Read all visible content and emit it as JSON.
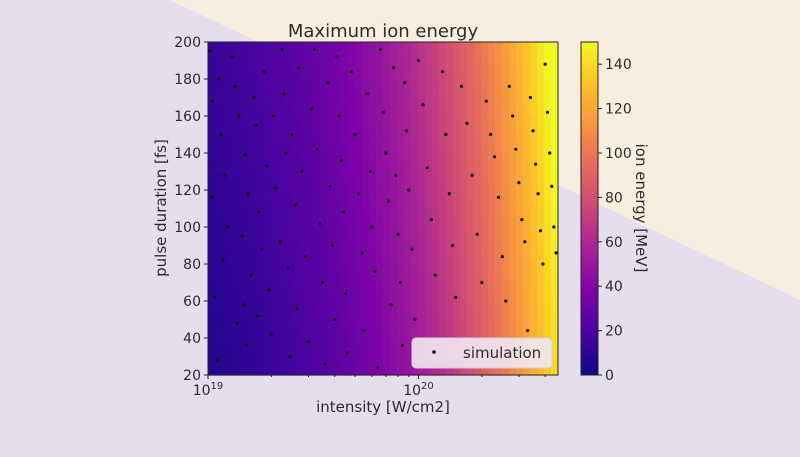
{
  "chart_data": {
    "type": "heatmap",
    "title": "Maximum ion energy",
    "xlabel": "intensity [W/cm2]",
    "ylabel": "pulse duration [fs]",
    "x_scale": "log",
    "xlim": [
      1e+19,
      4.6e+20
    ],
    "ylim": [
      20,
      200
    ],
    "x_ticks": [
      {
        "base": "10",
        "exp": "19"
      },
      {
        "base": "10",
        "exp": "20"
      }
    ],
    "y_ticks": [
      "20",
      "40",
      "60",
      "80",
      "100",
      "120",
      "140",
      "160",
      "180",
      "200"
    ],
    "colorbar": {
      "label": "ion energy [MeV]",
      "range": [
        0,
        150
      ],
      "ticks": [
        "0",
        "20",
        "40",
        "60",
        "80",
        "100",
        "120",
        "140"
      ],
      "colormap": "plasma"
    },
    "legend": {
      "label": "simulation",
      "placement": "lower right"
    },
    "grid": false,
    "series": [
      {
        "name": "simulation",
        "type": "scatter",
        "points": [
          [
            1.02e+19,
            195
          ],
          [
            1.05e+19,
            168
          ],
          [
            1.04e+19,
            116
          ],
          [
            1.08e+19,
            62
          ],
          [
            1.1e+19,
            28
          ],
          [
            1.12e+19,
            180
          ],
          [
            1.15e+19,
            150
          ],
          [
            1.2e+19,
            128
          ],
          [
            1.24e+19,
            100
          ],
          [
            1.18e+19,
            82
          ],
          [
            1.3e+19,
            192
          ],
          [
            1.35e+19,
            176
          ],
          [
            1.4e+19,
            160
          ],
          [
            1.45e+19,
            95
          ],
          [
            1.38e+19,
            48
          ],
          [
            1.5e+19,
            139
          ],
          [
            1.55e+19,
            118
          ],
          [
            1.6e+19,
            74
          ],
          [
            1.48e+19,
            58
          ],
          [
            1.52e+19,
            36
          ],
          [
            1.65e+19,
            170
          ],
          [
            1.7e+19,
            155
          ],
          [
            1.75e+19,
            108
          ],
          [
            1.8e+19,
            88
          ],
          [
            1.72e+19,
            52
          ],
          [
            1.85e+19,
            184
          ],
          [
            1.9e+19,
            133
          ],
          [
            1.95e+19,
            66
          ],
          [
            2e+19,
            42
          ],
          [
            2.05e+19,
            160
          ],
          [
            2.1e+19,
            121
          ],
          [
            2.2e+19,
            92
          ],
          [
            2.25e+19,
            196
          ],
          [
            2.3e+19,
            172
          ],
          [
            2.35e+19,
            140
          ],
          [
            2.4e+19,
            78
          ],
          [
            2.45e+19,
            30
          ],
          [
            2.5e+19,
            150
          ],
          [
            2.6e+19,
            112
          ],
          [
            2.65e+19,
            56
          ],
          [
            2.7e+19,
            186
          ],
          [
            2.8e+19,
            130
          ],
          [
            2.9e+19,
            84
          ],
          [
            3e+19,
            38
          ],
          [
            3.1e+19,
            164
          ],
          [
            3.2e+19,
            196
          ],
          [
            3.3e+19,
            142
          ],
          [
            3.4e+19,
            102
          ],
          [
            3.5e+19,
            70
          ],
          [
            3.6e+19,
            26
          ],
          [
            3.7e+19,
            178
          ],
          [
            3.8e+19,
            122
          ],
          [
            3.9e+19,
            90
          ],
          [
            4e+19,
            50
          ],
          [
            4.1e+19,
            192
          ],
          [
            4.2e+19,
            160
          ],
          [
            4.3e+19,
            136
          ],
          [
            4.4e+19,
            108
          ],
          [
            4.5e+19,
            64
          ],
          [
            4.6e+19,
            32
          ],
          [
            4.8e+19,
            184
          ],
          [
            5e+19,
            150
          ],
          [
            5.2e+19,
            118
          ],
          [
            5.4e+19,
            86
          ],
          [
            5.5e+19,
            44
          ],
          [
            5.7e+19,
            172
          ],
          [
            5.9e+19,
            130
          ],
          [
            6e+19,
            100
          ],
          [
            6.2e+19,
            76
          ],
          [
            6.4e+19,
            24
          ],
          [
            6.6e+19,
            196
          ],
          [
            6.8e+19,
            162
          ],
          [
            7e+19,
            140
          ],
          [
            7.2e+19,
            114
          ],
          [
            7.4e+19,
            58
          ],
          [
            7.6e+19,
            186
          ],
          [
            7.8e+19,
            128
          ],
          [
            8e+19,
            96
          ],
          [
            8.2e+19,
            70
          ],
          [
            8.4e+19,
            36
          ],
          [
            8.6e+19,
            178
          ],
          [
            8.8e+19,
            152
          ],
          [
            9e+19,
            120
          ],
          [
            9.3e+19,
            88
          ],
          [
            9.6e+19,
            50
          ],
          [
            1e+20,
            190
          ],
          [
            1.05e+20,
            166
          ],
          [
            1.1e+20,
            132
          ],
          [
            1.15e+20,
            104
          ],
          [
            1.2e+20,
            74
          ],
          [
            1.3e+20,
            184
          ],
          [
            1.35e+20,
            150
          ],
          [
            1.4e+20,
            118
          ],
          [
            1.45e+20,
            90
          ],
          [
            1.5e+20,
            62
          ],
          [
            1.6e+20,
            176
          ],
          [
            1.7e+20,
            156
          ],
          [
            1.8e+20,
            128
          ],
          [
            1.9e+20,
            96
          ],
          [
            2e+20,
            70
          ],
          [
            2.1e+20,
            168
          ],
          [
            2.2e+20,
            150
          ],
          [
            2.3e+20,
            138
          ],
          [
            2.4e+20,
            116
          ],
          [
            2.5e+20,
            84
          ],
          [
            2.6e+20,
            60
          ],
          [
            2.7e+20,
            176
          ],
          [
            2.8e+20,
            160
          ],
          [
            2.9e+20,
            142
          ],
          [
            3e+20,
            124
          ],
          [
            3.1e+20,
            104
          ],
          [
            3.2e+20,
            92
          ],
          [
            3.3e+20,
            44
          ],
          [
            3.4e+20,
            170
          ],
          [
            3.5e+20,
            152
          ],
          [
            3.6e+20,
            134
          ],
          [
            3.7e+20,
            118
          ],
          [
            3.8e+20,
            98
          ],
          [
            3.9e+20,
            80
          ],
          [
            4e+20,
            188
          ],
          [
            4.1e+20,
            162
          ],
          [
            4.2e+20,
            140
          ],
          [
            4.3e+20,
            122
          ],
          [
            4.4e+20,
            100
          ],
          [
            4.5e+20,
            86
          ]
        ]
      }
    ]
  }
}
